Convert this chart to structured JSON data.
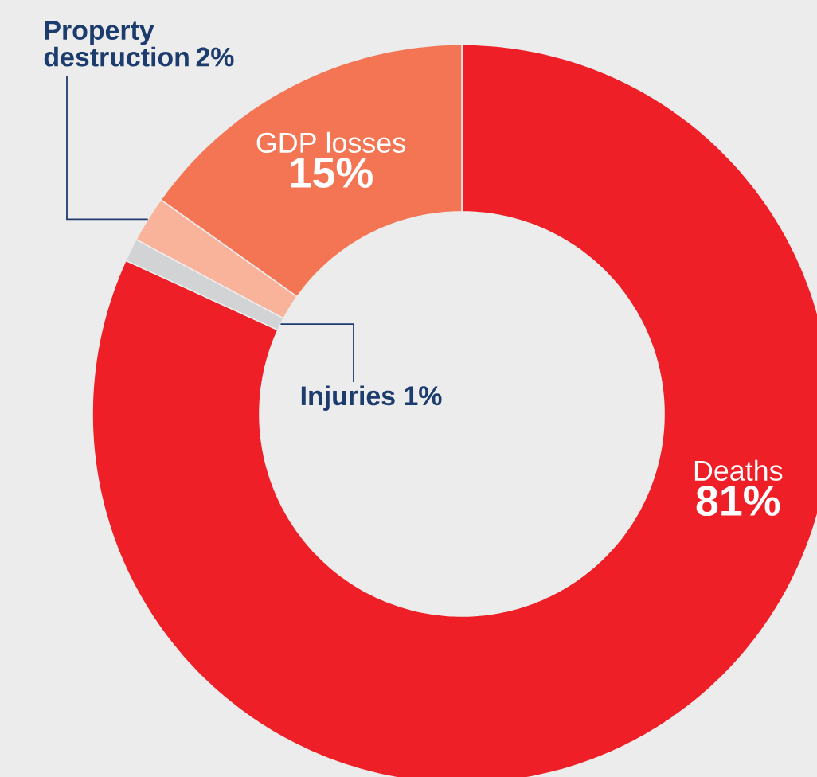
{
  "chart_data": {
    "type": "donut",
    "categories": [
      "Deaths",
      "Injuries",
      "Property destruction",
      "GDP losses"
    ],
    "values": [
      81,
      1,
      2,
      15
    ],
    "colors": [
      "#ee1f26",
      "#d1d3d4",
      "#f9b39b",
      "#f37554"
    ],
    "value_labels": [
      "81%",
      "1%",
      "2%",
      "15%"
    ]
  }
}
